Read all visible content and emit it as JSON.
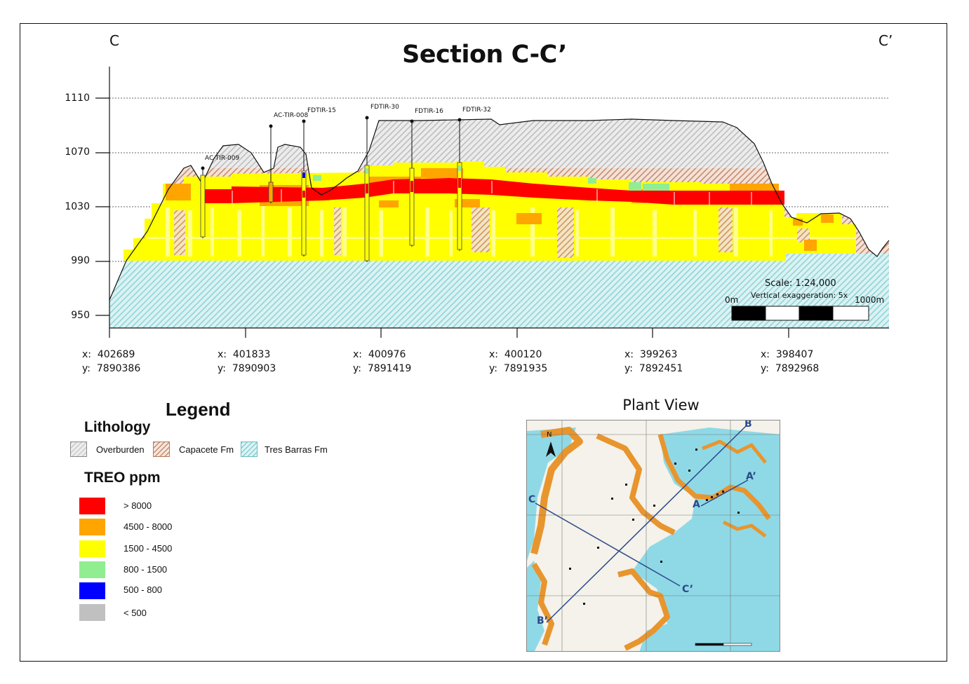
{
  "section": {
    "title": "Section C-C’",
    "left_label": "C",
    "right_label": "C’"
  },
  "elevation_axis": {
    "ticks": [
      "1110",
      "1070",
      "1030",
      "990",
      "950"
    ]
  },
  "drillholes": [
    "AC-TIR-009",
    "AC-TIR-008",
    "FDTIR-15",
    "FDTIR-30",
    "FDTIR-16",
    "FDTIR-32"
  ],
  "scale": {
    "label": "Scale:  1:24,000",
    "exaggeration": "Vertical exaggeration: 5x",
    "start": "0m",
    "end": "1000m"
  },
  "coordinates": [
    {
      "x": "x:  402689",
      "y": "y:  7890386"
    },
    {
      "x": "x:  401833",
      "y": "y:  7890903"
    },
    {
      "x": "x:  400976",
      "y": "y:  7891419"
    },
    {
      "x": "x:  400120",
      "y": "y:  7891935"
    },
    {
      "x": "x:  399263",
      "y": "y:  7892451"
    },
    {
      "x": "x:  398407",
      "y": "y:  7892968"
    }
  ],
  "legend": {
    "title": "Legend",
    "lithology_title": "Lithology",
    "lithology": [
      {
        "label": "Overburden",
        "color": "#c9c9c9"
      },
      {
        "label": "Capacete Fm",
        "color": "#c88a6a"
      },
      {
        "label": "Tres Barras Fm",
        "color": "#7fcfd3"
      }
    ],
    "treo_title": "TREO ppm",
    "treo": [
      {
        "label": "> 8000",
        "color": "#ff0000"
      },
      {
        "label": "4500 - 8000",
        "color": "#ffa500"
      },
      {
        "label": "1500 - 4500",
        "color": "#ffff00"
      },
      {
        "label": "800 - 1500",
        "color": "#90ee90"
      },
      {
        "label": "500 - 800",
        "color": "#0000ff"
      },
      {
        "label": "< 500",
        "color": "#c0c0c0"
      }
    ]
  },
  "plant_view": {
    "title": "Plant View",
    "north": "N",
    "section_labels": [
      "B",
      "A’",
      "A",
      "C",
      "C’",
      "B’"
    ]
  }
}
